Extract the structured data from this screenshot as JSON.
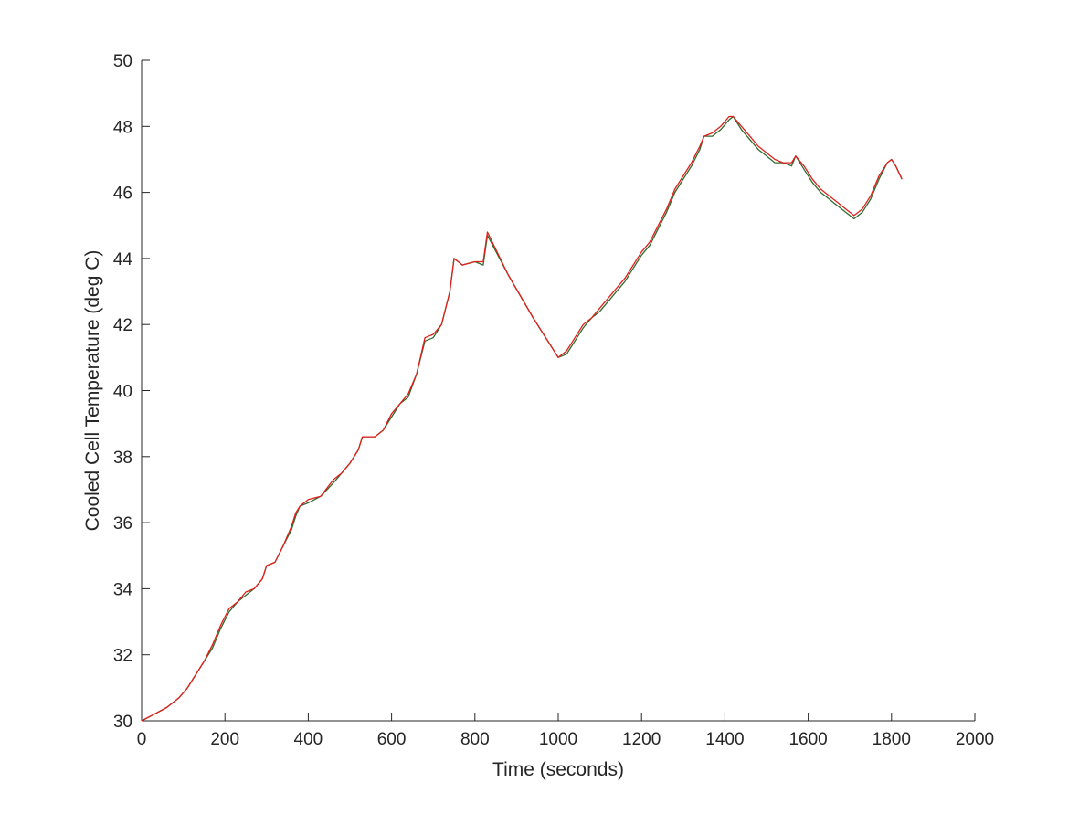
{
  "chart_data": {
    "type": "line",
    "title": "",
    "xlabel": "Time (seconds)",
    "ylabel": "Cooled Cell Temperature (deg C)",
    "xlim": [
      0,
      2000
    ],
    "ylim": [
      30,
      50
    ],
    "xticks": [
      0,
      200,
      400,
      600,
      800,
      1000,
      1200,
      1400,
      1600,
      1800,
      2000
    ],
    "yticks": [
      30,
      32,
      34,
      36,
      38,
      40,
      42,
      44,
      46,
      48,
      50
    ],
    "grid": false,
    "legend": "none",
    "series": [
      {
        "color": "#2f6b2f",
        "x": [
          0,
          30,
          60,
          90,
          110,
          130,
          150,
          170,
          190,
          210,
          230,
          250,
          270,
          290,
          300,
          320,
          340,
          360,
          370,
          380,
          400,
          430,
          460,
          480,
          500,
          520,
          530,
          560,
          580,
          600,
          620,
          640,
          660,
          680,
          700,
          720,
          740,
          750,
          770,
          800,
          820,
          830,
          880,
          940,
          1000,
          1020,
          1040,
          1060,
          1080,
          1100,
          1120,
          1140,
          1160,
          1180,
          1200,
          1220,
          1240,
          1260,
          1280,
          1300,
          1320,
          1340,
          1350,
          1370,
          1390,
          1410,
          1420,
          1440,
          1460,
          1480,
          1500,
          1520,
          1540,
          1560,
          1570,
          1590,
          1610,
          1630,
          1650,
          1670,
          1690,
          1710,
          1730,
          1750,
          1770,
          1790,
          1800,
          1810,
          1825
        ],
        "y": [
          30.0,
          30.2,
          30.4,
          30.7,
          31.0,
          31.4,
          31.8,
          32.2,
          32.8,
          33.3,
          33.6,
          33.8,
          34.0,
          34.3,
          34.7,
          34.8,
          35.3,
          35.8,
          36.2,
          36.5,
          36.6,
          36.8,
          37.2,
          37.5,
          37.8,
          38.2,
          38.6,
          38.6,
          38.8,
          39.2,
          39.6,
          39.8,
          40.5,
          41.5,
          41.6,
          42.0,
          43.0,
          44.0,
          43.8,
          43.9,
          43.8,
          44.7,
          43.5,
          42.2,
          41.0,
          41.1,
          41.5,
          41.9,
          42.2,
          42.4,
          42.7,
          43.0,
          43.3,
          43.7,
          44.1,
          44.4,
          44.9,
          45.4,
          46.0,
          46.4,
          46.8,
          47.3,
          47.7,
          47.7,
          47.9,
          48.2,
          48.3,
          47.9,
          47.6,
          47.3,
          47.1,
          46.9,
          46.9,
          46.8,
          47.1,
          46.7,
          46.3,
          46.0,
          45.8,
          45.6,
          45.4,
          45.2,
          45.4,
          45.8,
          46.4,
          46.9,
          47.0,
          46.8,
          46.4
        ]
      },
      {
        "color": "#e0201b",
        "x": [
          0,
          30,
          60,
          90,
          110,
          130,
          150,
          170,
          190,
          210,
          230,
          250,
          270,
          290,
          300,
          320,
          340,
          360,
          370,
          380,
          400,
          430,
          460,
          480,
          500,
          520,
          530,
          560,
          580,
          600,
          620,
          640,
          660,
          680,
          700,
          720,
          740,
          750,
          770,
          800,
          820,
          830,
          880,
          940,
          1000,
          1020,
          1040,
          1060,
          1080,
          1100,
          1120,
          1140,
          1160,
          1180,
          1200,
          1220,
          1240,
          1260,
          1280,
          1300,
          1320,
          1340,
          1350,
          1370,
          1390,
          1410,
          1420,
          1440,
          1460,
          1480,
          1500,
          1520,
          1540,
          1560,
          1570,
          1590,
          1610,
          1630,
          1650,
          1670,
          1690,
          1710,
          1730,
          1750,
          1770,
          1790,
          1800,
          1810,
          1825
        ],
        "y": [
          30.0,
          30.2,
          30.4,
          30.7,
          31.0,
          31.4,
          31.8,
          32.3,
          32.9,
          33.4,
          33.6,
          33.9,
          34.0,
          34.3,
          34.7,
          34.8,
          35.3,
          35.9,
          36.3,
          36.5,
          36.7,
          36.8,
          37.3,
          37.5,
          37.8,
          38.2,
          38.6,
          38.6,
          38.8,
          39.3,
          39.6,
          39.9,
          40.5,
          41.6,
          41.7,
          42.0,
          43.0,
          44.0,
          43.8,
          43.9,
          43.9,
          44.8,
          43.5,
          42.2,
          41.0,
          41.2,
          41.6,
          42.0,
          42.2,
          42.5,
          42.8,
          43.1,
          43.4,
          43.8,
          44.2,
          44.5,
          45.0,
          45.5,
          46.1,
          46.5,
          46.9,
          47.4,
          47.7,
          47.8,
          48.0,
          48.3,
          48.3,
          48.0,
          47.7,
          47.4,
          47.2,
          47.0,
          46.9,
          46.9,
          47.1,
          46.8,
          46.4,
          46.1,
          45.9,
          45.7,
          45.5,
          45.3,
          45.5,
          45.9,
          46.5,
          46.9,
          47.0,
          46.8,
          46.4
        ]
      }
    ]
  }
}
